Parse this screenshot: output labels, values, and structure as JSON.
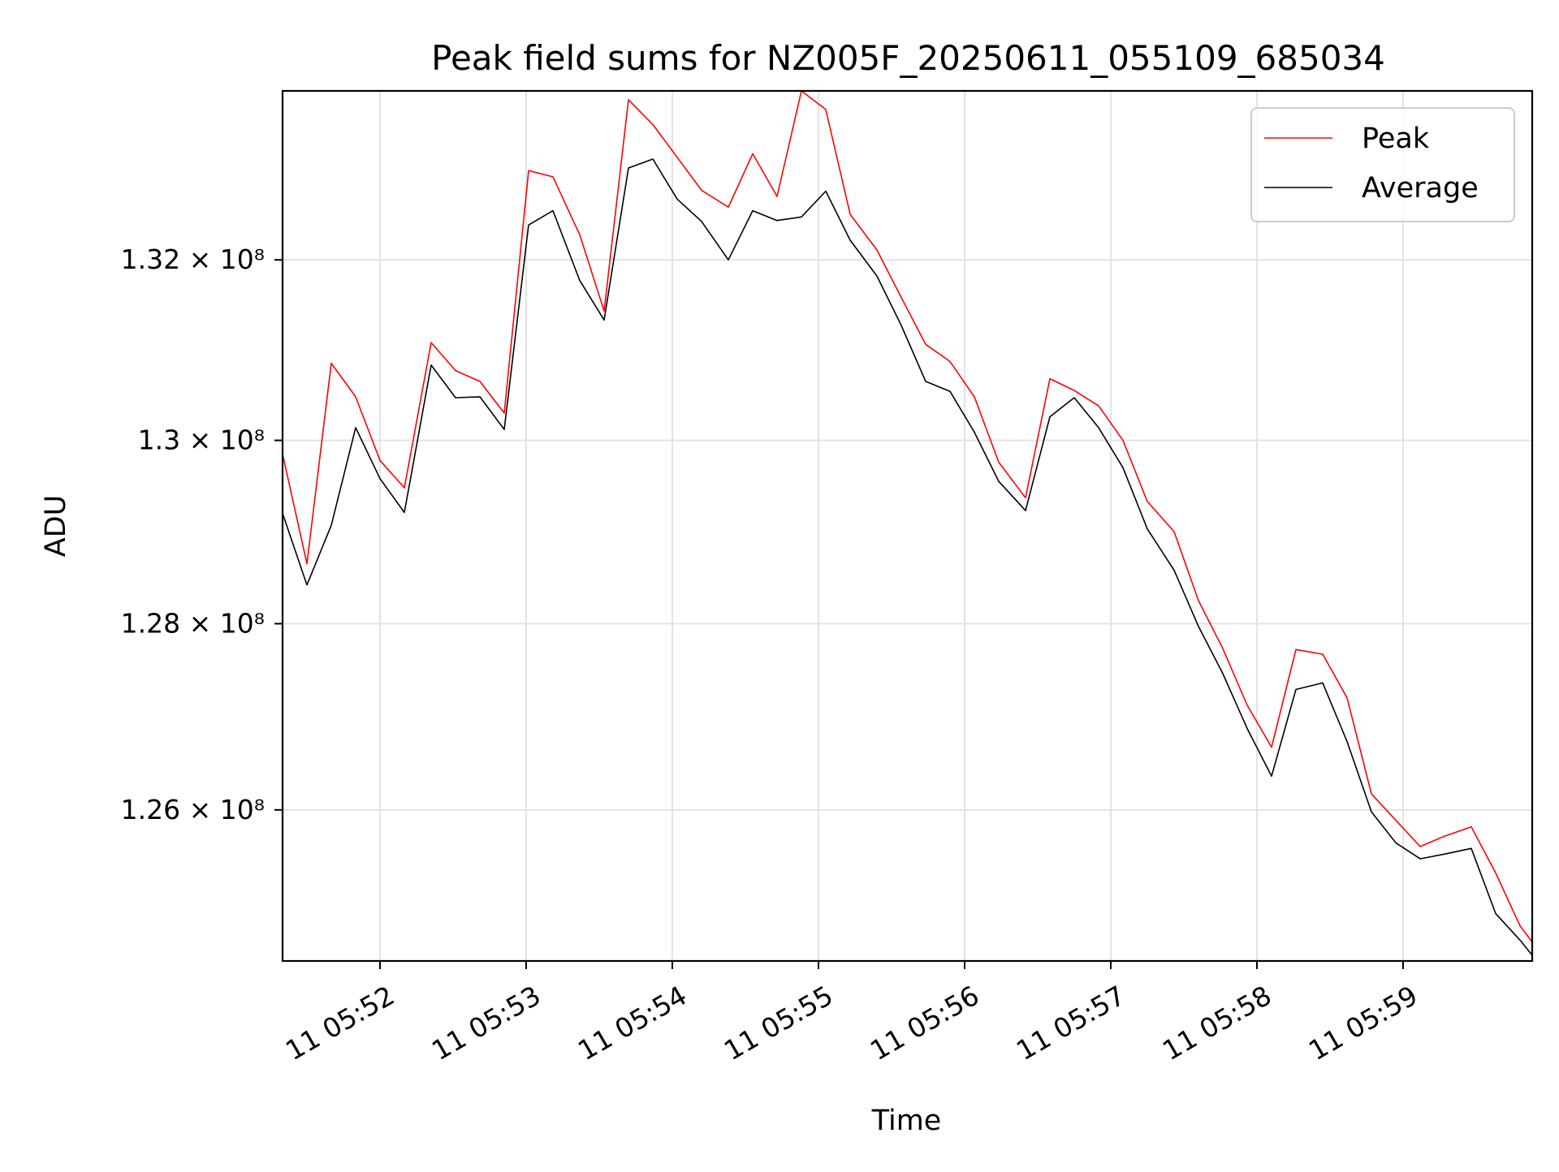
{
  "chart_data": {
    "type": "line",
    "title": "Peak field sums for NZ005F_20250611_055109_685034",
    "xlabel": "Time",
    "ylabel": "ADU",
    "y_scale": "log",
    "grid": true,
    "legend_position": "top-right",
    "xlim": [
      "11 05:51:20",
      "11 05:59:53"
    ],
    "ylim": [
      124400000,
      133900000
    ],
    "x_ticks": [
      "11 05:52",
      "11 05:53",
      "11 05:54",
      "11 05:55",
      "11 05:56",
      "11 05:57",
      "11 05:58",
      "11 05:59"
    ],
    "y_ticks": [
      {
        "value": 126000000,
        "mantissa": "1.26",
        "label": "1.26 × 10⁸"
      },
      {
        "value": 128000000,
        "mantissa": "1.28",
        "label": "1.28 × 10⁸"
      },
      {
        "value": 130000000,
        "mantissa": "1.3",
        "label": "1.3 × 10⁸"
      },
      {
        "value": 132000000,
        "mantissa": "1.32",
        "label": "1.32 × 10⁸"
      }
    ],
    "x": [
      "11 05:51:20",
      "11 05:51:30",
      "11 05:51:40",
      "11 05:51:50",
      "11 05:52:00",
      "11 05:52:10",
      "11 05:52:21",
      "11 05:52:31",
      "11 05:52:41",
      "11 05:52:51",
      "11 05:53:01",
      "11 05:53:11",
      "11 05:53:22",
      "11 05:53:32",
      "11 05:53:42",
      "11 05:53:52",
      "11 05:54:02",
      "11 05:54:12",
      "11 05:54:23",
      "11 05:54:33",
      "11 05:54:43",
      "11 05:54:53",
      "11 05:55:03",
      "11 05:55:13",
      "11 05:55:24",
      "11 05:55:34",
      "11 05:55:44",
      "11 05:55:54",
      "11 05:56:04",
      "11 05:56:14",
      "11 05:56:25",
      "11 05:56:35",
      "11 05:56:45",
      "11 05:56:55",
      "11 05:57:05",
      "11 05:57:15",
      "11 05:57:26",
      "11 05:57:36",
      "11 05:57:46",
      "11 05:57:56",
      "11 05:58:06",
      "11 05:58:16",
      "11 05:58:27",
      "11 05:58:37",
      "11 05:58:47",
      "11 05:58:57",
      "11 05:59:07",
      "11 05:59:17",
      "11 05:59:28",
      "11 05:59:38",
      "11 05:59:48",
      "11 05:59:53"
    ],
    "series": [
      {
        "name": "Peak",
        "color": "#ff0000",
        "values": [
          129850000,
          128650000,
          130850000,
          130480000,
          129780000,
          129480000,
          131080000,
          130770000,
          130650000,
          130300000,
          133000000,
          132930000,
          132280000,
          131430000,
          133800000,
          133520000,
          133150000,
          132780000,
          132590000,
          133190000,
          132710000,
          133900000,
          133690000,
          132510000,
          132110000,
          131580000,
          131060000,
          130870000,
          130480000,
          129760000,
          129370000,
          130680000,
          130550000,
          130380000,
          130000000,
          129330000,
          129000000,
          128250000,
          127730000,
          127120000,
          126670000,
          127720000,
          127670000,
          127200000,
          126170000,
          125890000,
          125610000,
          125720000,
          125820000,
          125330000,
          124770000,
          124600000
        ]
      },
      {
        "name": "Average",
        "color": "#000000",
        "values": [
          129200000,
          128420000,
          129070000,
          130140000,
          129580000,
          129210000,
          130830000,
          130470000,
          130480000,
          130120000,
          132390000,
          132550000,
          131770000,
          131330000,
          133030000,
          133130000,
          132680000,
          132430000,
          132000000,
          132550000,
          132440000,
          132480000,
          132770000,
          132220000,
          131820000,
          131270000,
          130650000,
          130540000,
          130090000,
          129550000,
          129230000,
          130260000,
          130470000,
          130140000,
          129700000,
          129030000,
          128580000,
          127970000,
          127460000,
          126870000,
          126360000,
          127290000,
          127360000,
          126730000,
          125980000,
          125650000,
          125480000,
          125530000,
          125590000,
          124900000,
          124620000,
          124460000
        ]
      }
    ]
  }
}
